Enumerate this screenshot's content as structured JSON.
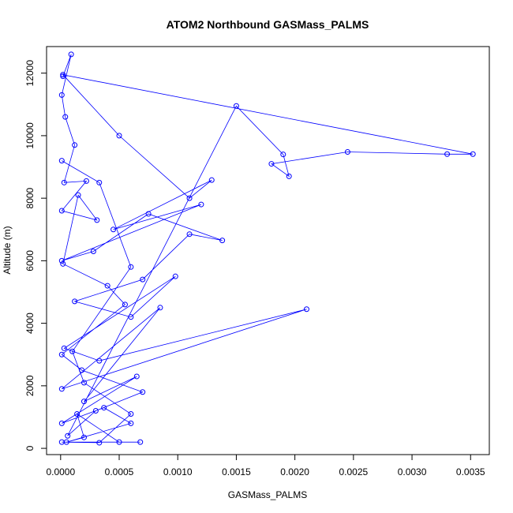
{
  "chart_data": {
    "type": "line",
    "title": "ATOM2 Northbound GASMass_PALMS",
    "xlabel": "GASMass_PALMS",
    "ylabel": "Altitude (m)",
    "xlim": [
      -0.00012,
      0.00366
    ],
    "ylim": [
      -200,
      12850
    ],
    "xticks": [
      "0.0000",
      "0.0005",
      "0.0010",
      "0.0015",
      "0.0020",
      "0.0025",
      "0.0030",
      "0.0035"
    ],
    "xtick_values": [
      0,
      0.0005,
      0.001,
      0.0015,
      0.002,
      0.0025,
      0.003,
      0.0035
    ],
    "yticks": [
      "0",
      "2000",
      "4000",
      "6000",
      "8000",
      "10000",
      "12000"
    ],
    "ytick_values": [
      0,
      2000,
      4000,
      6000,
      8000,
      10000,
      12000
    ],
    "marker": "open-circle",
    "series_color": "#0000ff",
    "grid": false,
    "series": [
      {
        "x": [
          2e-05,
          9e-05,
          1e-05,
          4e-05,
          0.00012,
          3e-05,
          0.00022,
          1e-05,
          0.00031,
          0.00015,
          2e-05,
          0.0004,
          0.00055,
          1e-05,
          0.00018,
          0.0007,
          0.0003,
          6e-05,
          0.0015,
          0.0019,
          0.00195,
          0.0018,
          0.00245,
          0.0033,
          0.00352,
          2e-05,
          0.0005,
          0.0011,
          0.00129,
          0.00045,
          0.0012,
          1e-05,
          0.00028,
          0.00075,
          0.00138,
          0.0011,
          0.0007,
          0.00012,
          0.0006,
          0.00098,
          3e-05,
          0.00033,
          0.0021,
          1e-05,
          0.00085,
          0.0002,
          0.00065,
          1e-05,
          0.00037,
          0.0006,
          5e-05,
          0.0002,
          0.00014,
          0.0005,
          0.00068,
          1e-05,
          0.00033,
          0.0006,
          0.0002,
          0.0001,
          0.0006,
          0.00033,
          1e-05
        ],
        "y": [
          11900,
          12600,
          11300,
          10600,
          9700,
          8500,
          8550,
          7600,
          7300,
          8100,
          5900,
          5200,
          4600,
          3000,
          2500,
          1800,
          1200,
          400,
          10950,
          9400,
          8700,
          9100,
          9480,
          9410,
          9410,
          11950,
          10000,
          8000,
          8580,
          7000,
          7800,
          6000,
          6300,
          7500,
          6650,
          6850,
          5400,
          4700,
          4200,
          5500,
          3200,
          2800,
          4450,
          1900,
          4500,
          1500,
          2300,
          800,
          1300,
          800,
          200,
          350,
          1100,
          200,
          200,
          200,
          180,
          1100,
          2100,
          3100,
          5800,
          8500,
          9200
        ]
      }
    ]
  }
}
